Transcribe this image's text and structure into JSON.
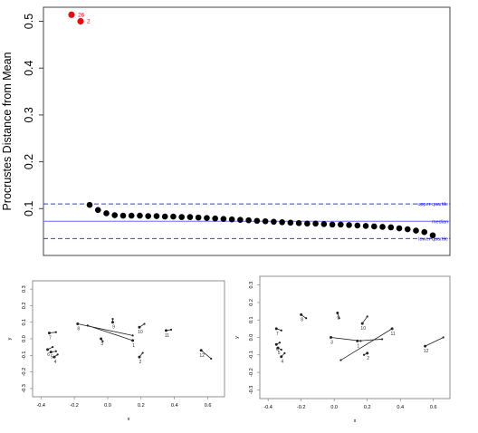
{
  "chart_data": [
    {
      "type": "scatter",
      "ylabel": "Procrustes Distance from Mean",
      "ylim": [
        0,
        0.53
      ],
      "yticks": [
        "0.1",
        "0.2",
        "0.3",
        "0.4",
        "0.5"
      ],
      "outliers": [
        {
          "label": "26",
          "value": 0.514
        },
        {
          "label": "2",
          "value": 0.5
        }
      ],
      "values": [
        0.108,
        0.097,
        0.09,
        0.086,
        0.085,
        0.085,
        0.085,
        0.084,
        0.084,
        0.083,
        0.083,
        0.082,
        0.082,
        0.081,
        0.08,
        0.079,
        0.078,
        0.077,
        0.076,
        0.075,
        0.074,
        0.073,
        0.072,
        0.071,
        0.07,
        0.069,
        0.068,
        0.068,
        0.067,
        0.066,
        0.066,
        0.065,
        0.064,
        0.063,
        0.062,
        0.061,
        0.06,
        0.058,
        0.056,
        0.053,
        0.05,
        0.043
      ],
      "reference_lines": [
        {
          "label": "upper quartile",
          "value": 0.11,
          "style": "dashed",
          "color": "#4040c0"
        },
        {
          "label": "median",
          "value": 0.073,
          "style": "solid",
          "color": "#6a6aff"
        },
        {
          "label": "lower quartile",
          "value": 0.036,
          "style": "dashed",
          "color": "#4040c0"
        }
      ],
      "point_color": "#000000",
      "outlier_color": "#e01010"
    },
    {
      "type": "scatter",
      "xlabel": "x",
      "ylabel": "y",
      "xlim": [
        -0.45,
        0.7
      ],
      "ylim": [
        -0.35,
        0.35
      ],
      "xticks": [
        "-0.4",
        "-0.2",
        "0.0",
        "0.2",
        "0.4",
        "0.6"
      ],
      "yticks": [
        "-0.3",
        "-0.2",
        "-0.1",
        "0.0",
        "0.1",
        "0.2",
        "0.3"
      ],
      "landmarks": [
        {
          "label": "7",
          "mean": [
            -0.35,
            0.035
          ],
          "specimen": [
            -0.31,
            0.04
          ]
        },
        {
          "label": "6",
          "mean": [
            -0.36,
            -0.065
          ],
          "specimen": [
            -0.33,
            -0.05
          ]
        },
        {
          "label": "5",
          "mean": [
            -0.34,
            -0.08
          ],
          "specimen": [
            -0.31,
            -0.075
          ]
        },
        {
          "label": "4",
          "mean": [
            -0.32,
            -0.11
          ],
          "specimen": [
            -0.3,
            -0.095
          ]
        },
        {
          "label": "8",
          "mean": [
            -0.18,
            0.09
          ],
          "specimen": [
            0.15,
            0.02
          ]
        },
        {
          "label": "9",
          "mean": [
            0.03,
            0.1
          ],
          "specimen": [
            0.03,
            0.12
          ]
        },
        {
          "label": "3",
          "mean": [
            -0.04,
            0.0
          ],
          "specimen": [
            -0.03,
            -0.015
          ]
        },
        {
          "label": "1",
          "mean": [
            0.15,
            -0.01
          ],
          "specimen": [
            -0.12,
            0.08
          ]
        },
        {
          "label": "10",
          "mean": [
            0.19,
            0.07
          ],
          "specimen": [
            0.22,
            0.09
          ]
        },
        {
          "label": "2",
          "mean": [
            0.19,
            -0.11
          ],
          "specimen": [
            0.21,
            -0.085
          ]
        },
        {
          "label": "11",
          "mean": [
            0.35,
            0.05
          ],
          "specimen": [
            0.38,
            0.055
          ]
        },
        {
          "label": "12",
          "mean": [
            0.56,
            -0.07
          ],
          "specimen": [
            0.62,
            -0.12
          ]
        }
      ]
    },
    {
      "type": "scatter",
      "xlabel": "x",
      "ylabel": "y",
      "xlim": [
        -0.45,
        0.7
      ],
      "ylim": [
        -0.35,
        0.35
      ],
      "xticks": [
        "-0.4",
        "-0.2",
        "0.0",
        "0.2",
        "0.4",
        "0.6"
      ],
      "yticks": [
        "-0.3",
        "-0.2",
        "-0.1",
        "0.0",
        "0.1",
        "0.2",
        "0.3"
      ],
      "landmarks": [
        {
          "label": "7",
          "mean": [
            -0.35,
            0.05
          ],
          "specimen": [
            -0.32,
            0.04
          ]
        },
        {
          "label": "6",
          "mean": [
            -0.35,
            -0.04
          ],
          "specimen": [
            -0.33,
            -0.03
          ]
        },
        {
          "label": "5",
          "mean": [
            -0.34,
            -0.06
          ],
          "specimen": [
            -0.32,
            -0.07
          ]
        },
        {
          "label": "4",
          "mean": [
            -0.32,
            -0.11
          ],
          "specimen": [
            -0.3,
            -0.09
          ]
        },
        {
          "label": "8",
          "mean": [
            -0.2,
            0.13
          ],
          "specimen": [
            -0.17,
            0.11
          ]
        },
        {
          "label": "9",
          "mean": [
            0.02,
            0.14
          ],
          "specimen": [
            0.03,
            0.11
          ]
        },
        {
          "label": "3",
          "mean": [
            -0.02,
            0.0
          ],
          "specimen": [
            0.16,
            -0.02
          ]
        },
        {
          "label": "1",
          "mean": [
            0.14,
            -0.02
          ],
          "specimen": [
            0.29,
            -0.01
          ]
        },
        {
          "label": "10",
          "mean": [
            0.17,
            0.08
          ],
          "specimen": [
            0.2,
            0.12
          ]
        },
        {
          "label": "2",
          "mean": [
            0.2,
            -0.09
          ],
          "specimen": [
            0.18,
            -0.1
          ]
        },
        {
          "label": "11",
          "mean": [
            0.35,
            0.05
          ],
          "specimen": [
            0.04,
            -0.13
          ]
        },
        {
          "label": "12",
          "mean": [
            0.55,
            -0.05
          ],
          "specimen": [
            0.66,
            0.0
          ]
        }
      ]
    }
  ]
}
